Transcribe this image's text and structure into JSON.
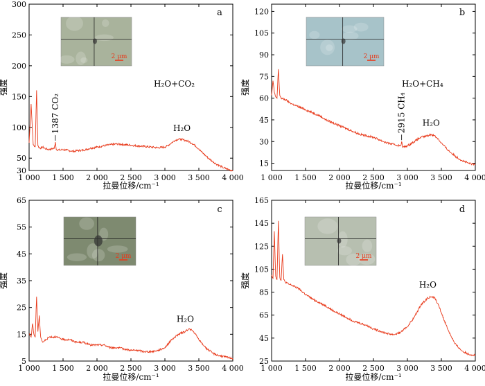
{
  "chart_data": [
    {
      "type": "line",
      "panel_label": "a",
      "xlabel": "拉曼位移/cm⁻¹",
      "ylabel": "强度",
      "xlim": [
        1000,
        4000
      ],
      "ylim": [
        30,
        300
      ],
      "xticks": [
        1000,
        1500,
        2000,
        2500,
        3000,
        3500,
        4000
      ],
      "xtick_labels": [
        "1 000",
        "1 500",
        "2 000",
        "2 500",
        "3 000",
        "3 500",
        "4 000"
      ],
      "yticks": [
        30,
        50,
        100,
        150,
        200,
        250,
        300
      ],
      "ytick_labels": [
        "30",
        "50",
        "100",
        "150",
        "200",
        "250",
        "300"
      ],
      "legend_text": "H₂O+CO₂",
      "annotations": [
        {
          "text": "1387 CO₂",
          "x": 1387,
          "y": 76
        },
        {
          "text": "H₂O",
          "x": 3250,
          "y": 83
        }
      ],
      "inset": {
        "label": "2 μm"
      },
      "x": [
        1000,
        1030,
        1060,
        1090,
        1110,
        1130,
        1160,
        1200,
        1250,
        1290,
        1330,
        1370,
        1387,
        1400,
        1450,
        1500,
        1550,
        1600,
        1650,
        1700,
        1800,
        1900,
        2000,
        2100,
        2200,
        2300,
        2400,
        2500,
        2600,
        2700,
        2800,
        2900,
        3000,
        3050,
        3100,
        3150,
        3200,
        3250,
        3300,
        3350,
        3400,
        3450,
        3500,
        3550,
        3600,
        3650,
        3700,
        3750,
        3800,
        3850,
        3900,
        3950,
        4000
      ],
      "y": [
        75,
        138,
        72,
        68,
        160,
        70,
        66,
        68,
        65,
        64,
        65,
        66,
        76,
        64,
        63,
        64,
        63,
        62,
        61,
        62,
        63,
        66,
        68,
        70,
        72,
        73,
        72,
        71,
        70,
        69,
        68,
        67,
        68,
        71,
        75,
        79,
        81,
        80,
        79,
        77,
        74,
        70,
        65,
        59,
        54,
        49,
        45,
        41,
        38,
        35,
        33,
        31,
        30
      ]
    },
    {
      "type": "line",
      "panel_label": "b",
      "xlabel": "拉曼位移/cm⁻¹",
      "ylabel": "强度",
      "xlim": [
        1000,
        4000
      ],
      "ylim": [
        10,
        125
      ],
      "xticks": [
        1000,
        1500,
        2000,
        2500,
        3000,
        3500,
        4000
      ],
      "xtick_labels": [
        "1 000",
        "1 500",
        "2 000",
        "2 500",
        "3 000",
        "3 500",
        "4 000"
      ],
      "yticks": [
        15,
        30,
        45,
        60,
        75,
        90,
        105,
        120
      ],
      "ytick_labels": [
        "15",
        "30",
        "45",
        "60",
        "75",
        "90",
        "105",
        "120"
      ],
      "legend_text": "H₂O+CH₄",
      "annotations": [
        {
          "text": "2915 CH₄",
          "x": 2915,
          "y": 30
        },
        {
          "text": "H₂O",
          "x": 3350,
          "y": 36
        }
      ],
      "inset": {
        "label": "2 μm"
      },
      "x": [
        1000,
        1020,
        1040,
        1060,
        1080,
        1100,
        1120,
        1140,
        1200,
        1300,
        1400,
        1500,
        1600,
        1700,
        1800,
        1900,
        2000,
        2100,
        2200,
        2300,
        2400,
        2500,
        2600,
        2700,
        2800,
        2900,
        2915,
        2930,
        3000,
        3100,
        3200,
        3300,
        3350,
        3400,
        3450,
        3500,
        3600,
        3700,
        3800,
        3900,
        4000
      ],
      "y": [
        62,
        72,
        64,
        61,
        60,
        80,
        62,
        60,
        59,
        56,
        54,
        52,
        50,
        48,
        45,
        43,
        41,
        39,
        37,
        35,
        34,
        33,
        31,
        29,
        28,
        27,
        30,
        26,
        27,
        30,
        33,
        34,
        35,
        34,
        32,
        29,
        24,
        20,
        17,
        15,
        14
      ]
    },
    {
      "type": "line",
      "panel_label": "c",
      "xlabel": "拉曼位移/cm⁻¹",
      "ylabel": "强度",
      "xlim": [
        1000,
        4000
      ],
      "ylim": [
        5,
        65
      ],
      "xticks": [
        1000,
        1500,
        2000,
        2500,
        3000,
        3500,
        4000
      ],
      "xtick_labels": [
        "1 000",
        "1 500",
        "2 000",
        "2 500",
        "3 000",
        "3 500",
        "4 000"
      ],
      "yticks": [
        5,
        15,
        25,
        35,
        45,
        55,
        65
      ],
      "ytick_labels": [
        "5",
        "15",
        "25",
        "35",
        "45",
        "55",
        "65"
      ],
      "legend_text": "",
      "annotations": [
        {
          "text": "H₂O",
          "x": 3300,
          "y": 17
        }
      ],
      "inset": {
        "label": "2 μm"
      },
      "x": [
        1000,
        1030,
        1050,
        1070,
        1090,
        1110,
        1130,
        1150,
        1170,
        1200,
        1250,
        1300,
        1400,
        1500,
        1600,
        1700,
        1800,
        1900,
        2000,
        2100,
        2200,
        2300,
        2400,
        2500,
        2600,
        2700,
        2800,
        2900,
        3000,
        3100,
        3200,
        3300,
        3350,
        3400,
        3450,
        3500,
        3600,
        3700,
        3800,
        3900,
        4000
      ],
      "y": [
        15,
        14,
        19,
        15,
        14,
        29,
        16,
        22,
        14,
        12,
        13,
        14,
        14,
        13,
        13,
        12,
        12,
        11,
        11,
        11,
        10,
        10,
        9.5,
        9,
        9,
        8.5,
        8.5,
        9,
        10,
        13,
        15,
        16,
        17,
        16.5,
        15,
        13,
        10,
        8,
        7,
        6.5,
        6
      ]
    },
    {
      "type": "line",
      "panel_label": "d",
      "xlabel": "拉曼位移/cm⁻¹",
      "ylabel": "强度",
      "xlim": [
        1000,
        4000
      ],
      "ylim": [
        25,
        165
      ],
      "xticks": [
        1000,
        1500,
        2000,
        2500,
        3000,
        3500,
        4000
      ],
      "xtick_labels": [
        "1 000",
        "1 500",
        "2 000",
        "2 500",
        "3 000",
        "3 500",
        "4 000"
      ],
      "yticks": [
        25,
        45,
        65,
        85,
        105,
        125,
        145,
        165
      ],
      "ytick_labels": [
        "25",
        "45",
        "65",
        "85",
        "105",
        "125",
        "145",
        "165"
      ],
      "legend_text": "",
      "annotations": [
        {
          "text": "H₂O",
          "x": 3300,
          "y": 83
        }
      ],
      "inset": {
        "label": "2 μm"
      },
      "x": [
        1000,
        1020,
        1040,
        1060,
        1080,
        1100,
        1120,
        1140,
        1160,
        1180,
        1200,
        1250,
        1300,
        1400,
        1500,
        1600,
        1700,
        1800,
        1900,
        2000,
        2100,
        2200,
        2300,
        2400,
        2500,
        2600,
        2700,
        2800,
        2900,
        3000,
        3100,
        3200,
        3300,
        3350,
        3400,
        3450,
        3500,
        3600,
        3700,
        3800,
        3900,
        4000
      ],
      "y": [
        100,
        97,
        138,
        99,
        96,
        147,
        98,
        95,
        118,
        96,
        94,
        92,
        91,
        88,
        83,
        79,
        76,
        73,
        69,
        66,
        63,
        60,
        58,
        56,
        53,
        51,
        49,
        48,
        50,
        55,
        63,
        74,
        80,
        81,
        80,
        75,
        67,
        52,
        40,
        34,
        31,
        30
      ]
    }
  ]
}
